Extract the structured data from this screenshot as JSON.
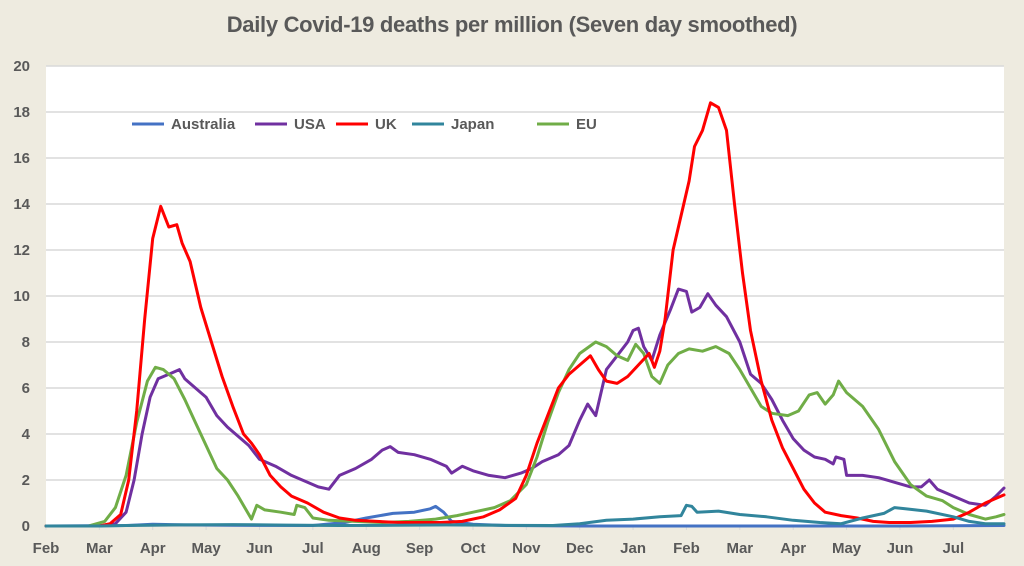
{
  "chart_data": {
    "type": "line",
    "title": "Daily Covid-19 deaths per million (Seven day smoothed)",
    "xlabel": "",
    "ylabel": "",
    "ylim": [
      0,
      20
    ],
    "yticks": [
      0,
      2,
      4,
      6,
      8,
      10,
      12,
      14,
      16,
      18,
      20
    ],
    "xlim_months": [
      0,
      17.95
    ],
    "x_unit": "months since start of Feb 2020",
    "xtick_labels": [
      "Feb",
      "Mar",
      "Apr",
      "May",
      "Jun",
      "Jul",
      "Aug",
      "Sep",
      "Oct",
      "Nov",
      "Dec",
      "Jan",
      "Feb",
      "Mar",
      "Apr",
      "May",
      "Jun",
      "Jul"
    ],
    "grid": "horizontal",
    "legend_position": "top-left (inside plot)",
    "series": [
      {
        "name": "Australia",
        "color": "#4472c4",
        "points": [
          [
            0,
            0
          ],
          [
            1.5,
            0.02
          ],
          [
            2.0,
            0.08
          ],
          [
            2.6,
            0.05
          ],
          [
            3.5,
            0.03
          ],
          [
            5.0,
            0.02
          ],
          [
            5.6,
            0.15
          ],
          [
            6.0,
            0.35
          ],
          [
            6.5,
            0.55
          ],
          [
            6.9,
            0.6
          ],
          [
            7.2,
            0.75
          ],
          [
            7.3,
            0.85
          ],
          [
            7.45,
            0.6
          ],
          [
            7.6,
            0.2
          ],
          [
            8.0,
            0.08
          ],
          [
            8.6,
            0.02
          ],
          [
            10,
            0.0
          ],
          [
            12,
            0.0
          ],
          [
            14,
            0.0
          ],
          [
            16,
            0.0
          ],
          [
            17.95,
            0.02
          ]
        ]
      },
      {
        "name": "USA",
        "color": "#7030a0",
        "points": [
          [
            0,
            0
          ],
          [
            1.0,
            0
          ],
          [
            1.3,
            0.1
          ],
          [
            1.5,
            0.6
          ],
          [
            1.65,
            2.0
          ],
          [
            1.8,
            4.0
          ],
          [
            1.95,
            5.6
          ],
          [
            2.1,
            6.4
          ],
          [
            2.3,
            6.6
          ],
          [
            2.5,
            6.8
          ],
          [
            2.6,
            6.4
          ],
          [
            2.8,
            6.0
          ],
          [
            3.0,
            5.6
          ],
          [
            3.2,
            4.8
          ],
          [
            3.4,
            4.3
          ],
          [
            3.6,
            3.9
          ],
          [
            3.8,
            3.5
          ],
          [
            4.0,
            2.9
          ],
          [
            4.3,
            2.6
          ],
          [
            4.6,
            2.2
          ],
          [
            4.9,
            1.9
          ],
          [
            5.1,
            1.7
          ],
          [
            5.3,
            1.6
          ],
          [
            5.5,
            2.2
          ],
          [
            5.8,
            2.5
          ],
          [
            6.1,
            2.9
          ],
          [
            6.3,
            3.3
          ],
          [
            6.45,
            3.45
          ],
          [
            6.6,
            3.2
          ],
          [
            6.9,
            3.1
          ],
          [
            7.2,
            2.9
          ],
          [
            7.5,
            2.6
          ],
          [
            7.6,
            2.3
          ],
          [
            7.8,
            2.6
          ],
          [
            8.0,
            2.4
          ],
          [
            8.3,
            2.2
          ],
          [
            8.6,
            2.1
          ],
          [
            8.9,
            2.3
          ],
          [
            9.1,
            2.5
          ],
          [
            9.3,
            2.8
          ],
          [
            9.6,
            3.1
          ],
          [
            9.8,
            3.5
          ],
          [
            10.0,
            4.6
          ],
          [
            10.15,
            5.3
          ],
          [
            10.3,
            4.8
          ],
          [
            10.5,
            6.8
          ],
          [
            10.7,
            7.4
          ],
          [
            10.9,
            8.0
          ],
          [
            11.0,
            8.5
          ],
          [
            11.1,
            8.6
          ],
          [
            11.2,
            7.8
          ],
          [
            11.35,
            7.2
          ],
          [
            11.5,
            8.3
          ],
          [
            11.7,
            9.4
          ],
          [
            11.85,
            10.3
          ],
          [
            12.0,
            10.2
          ],
          [
            12.1,
            9.3
          ],
          [
            12.25,
            9.5
          ],
          [
            12.4,
            10.1
          ],
          [
            12.55,
            9.6
          ],
          [
            12.75,
            9.1
          ],
          [
            13.0,
            8.0
          ],
          [
            13.2,
            6.6
          ],
          [
            13.4,
            6.2
          ],
          [
            13.6,
            5.5
          ],
          [
            13.8,
            4.6
          ],
          [
            14.0,
            3.8
          ],
          [
            14.2,
            3.3
          ],
          [
            14.4,
            3.0
          ],
          [
            14.6,
            2.9
          ],
          [
            14.75,
            2.7
          ],
          [
            14.8,
            3.0
          ],
          [
            14.95,
            2.9
          ],
          [
            15.0,
            2.2
          ],
          [
            15.3,
            2.2
          ],
          [
            15.6,
            2.1
          ],
          [
            15.9,
            1.9
          ],
          [
            16.2,
            1.7
          ],
          [
            16.4,
            1.7
          ],
          [
            16.55,
            2.0
          ],
          [
            16.7,
            1.6
          ],
          [
            17.0,
            1.3
          ],
          [
            17.3,
            1.0
          ],
          [
            17.6,
            0.9
          ],
          [
            17.8,
            1.3
          ],
          [
            17.95,
            1.65
          ]
        ]
      },
      {
        "name": "UK",
        "color": "#ff0000",
        "points": [
          [
            0,
            0
          ],
          [
            1.0,
            0
          ],
          [
            1.2,
            0.1
          ],
          [
            1.4,
            0.5
          ],
          [
            1.55,
            2.0
          ],
          [
            1.7,
            5.0
          ],
          [
            1.85,
            9.0
          ],
          [
            2.0,
            12.5
          ],
          [
            2.15,
            13.9
          ],
          [
            2.3,
            13.0
          ],
          [
            2.45,
            13.1
          ],
          [
            2.55,
            12.3
          ],
          [
            2.7,
            11.5
          ],
          [
            2.9,
            9.5
          ],
          [
            3.1,
            8.0
          ],
          [
            3.3,
            6.5
          ],
          [
            3.5,
            5.2
          ],
          [
            3.7,
            4.0
          ],
          [
            3.85,
            3.6
          ],
          [
            4.0,
            3.1
          ],
          [
            4.2,
            2.2
          ],
          [
            4.4,
            1.7
          ],
          [
            4.6,
            1.3
          ],
          [
            4.9,
            1.0
          ],
          [
            5.2,
            0.6
          ],
          [
            5.5,
            0.35
          ],
          [
            5.8,
            0.25
          ],
          [
            6.2,
            0.2
          ],
          [
            6.6,
            0.15
          ],
          [
            7.0,
            0.15
          ],
          [
            7.4,
            0.15
          ],
          [
            7.8,
            0.2
          ],
          [
            8.2,
            0.4
          ],
          [
            8.5,
            0.7
          ],
          [
            8.8,
            1.2
          ],
          [
            9.0,
            2.2
          ],
          [
            9.2,
            3.6
          ],
          [
            9.4,
            4.8
          ],
          [
            9.6,
            6.0
          ],
          [
            9.8,
            6.6
          ],
          [
            10.0,
            7.0
          ],
          [
            10.2,
            7.4
          ],
          [
            10.35,
            6.8
          ],
          [
            10.5,
            6.3
          ],
          [
            10.7,
            6.2
          ],
          [
            10.9,
            6.5
          ],
          [
            11.1,
            7.0
          ],
          [
            11.3,
            7.5
          ],
          [
            11.4,
            6.9
          ],
          [
            11.5,
            7.6
          ],
          [
            11.6,
            9.0
          ],
          [
            11.75,
            12.0
          ],
          [
            11.9,
            13.5
          ],
          [
            12.05,
            15.0
          ],
          [
            12.15,
            16.5
          ],
          [
            12.3,
            17.2
          ],
          [
            12.45,
            18.4
          ],
          [
            12.6,
            18.2
          ],
          [
            12.75,
            17.2
          ],
          [
            12.9,
            14.0
          ],
          [
            13.05,
            11.0
          ],
          [
            13.2,
            8.5
          ],
          [
            13.4,
            6.3
          ],
          [
            13.6,
            4.6
          ],
          [
            13.8,
            3.4
          ],
          [
            14.0,
            2.5
          ],
          [
            14.2,
            1.6
          ],
          [
            14.4,
            1.0
          ],
          [
            14.6,
            0.6
          ],
          [
            14.9,
            0.45
          ],
          [
            15.2,
            0.35
          ],
          [
            15.5,
            0.2
          ],
          [
            15.8,
            0.15
          ],
          [
            16.2,
            0.15
          ],
          [
            16.6,
            0.2
          ],
          [
            17.0,
            0.3
          ],
          [
            17.3,
            0.6
          ],
          [
            17.6,
            1.0
          ],
          [
            17.95,
            1.35
          ]
        ]
      },
      {
        "name": "Japan",
        "color": "#31859c",
        "points": [
          [
            0,
            0
          ],
          [
            1.0,
            0.0
          ],
          [
            1.5,
            0.02
          ],
          [
            2.5,
            0.05
          ],
          [
            3.5,
            0.06
          ],
          [
            4.5,
            0.04
          ],
          [
            5.5,
            0.02
          ],
          [
            6.5,
            0.03
          ],
          [
            7.5,
            0.05
          ],
          [
            8.5,
            0.03
          ],
          [
            9.5,
            0.02
          ],
          [
            10.0,
            0.1
          ],
          [
            10.5,
            0.25
          ],
          [
            11.0,
            0.3
          ],
          [
            11.5,
            0.4
          ],
          [
            11.9,
            0.45
          ],
          [
            12.0,
            0.9
          ],
          [
            12.1,
            0.85
          ],
          [
            12.2,
            0.6
          ],
          [
            12.6,
            0.65
          ],
          [
            13.0,
            0.5
          ],
          [
            13.5,
            0.4
          ],
          [
            14.0,
            0.25
          ],
          [
            14.5,
            0.15
          ],
          [
            14.9,
            0.1
          ],
          [
            15.3,
            0.35
          ],
          [
            15.7,
            0.55
          ],
          [
            15.9,
            0.8
          ],
          [
            16.1,
            0.75
          ],
          [
            16.5,
            0.65
          ],
          [
            17.0,
            0.4
          ],
          [
            17.3,
            0.2
          ],
          [
            17.6,
            0.1
          ],
          [
            17.95,
            0.1
          ]
        ]
      },
      {
        "name": "EU",
        "color": "#70ad47",
        "points": [
          [
            0,
            0
          ],
          [
            0.8,
            0
          ],
          [
            1.1,
            0.2
          ],
          [
            1.3,
            0.8
          ],
          [
            1.5,
            2.2
          ],
          [
            1.7,
            4.5
          ],
          [
            1.9,
            6.3
          ],
          [
            2.05,
            6.9
          ],
          [
            2.2,
            6.8
          ],
          [
            2.4,
            6.4
          ],
          [
            2.6,
            5.5
          ],
          [
            2.8,
            4.5
          ],
          [
            3.0,
            3.5
          ],
          [
            3.2,
            2.5
          ],
          [
            3.4,
            2.0
          ],
          [
            3.6,
            1.3
          ],
          [
            3.75,
            0.7
          ],
          [
            3.85,
            0.3
          ],
          [
            3.95,
            0.9
          ],
          [
            4.1,
            0.7
          ],
          [
            4.4,
            0.6
          ],
          [
            4.65,
            0.5
          ],
          [
            4.7,
            0.9
          ],
          [
            4.85,
            0.8
          ],
          [
            5.0,
            0.35
          ],
          [
            5.3,
            0.25
          ],
          [
            5.8,
            0.2
          ],
          [
            6.3,
            0.15
          ],
          [
            6.8,
            0.2
          ],
          [
            7.3,
            0.3
          ],
          [
            7.7,
            0.45
          ],
          [
            8.0,
            0.6
          ],
          [
            8.4,
            0.8
          ],
          [
            8.7,
            1.1
          ],
          [
            9.0,
            1.8
          ],
          [
            9.2,
            3.0
          ],
          [
            9.4,
            4.5
          ],
          [
            9.6,
            5.8
          ],
          [
            9.8,
            6.8
          ],
          [
            10.0,
            7.5
          ],
          [
            10.3,
            8.0
          ],
          [
            10.5,
            7.8
          ],
          [
            10.7,
            7.4
          ],
          [
            10.9,
            7.2
          ],
          [
            11.05,
            7.9
          ],
          [
            11.2,
            7.5
          ],
          [
            11.35,
            6.5
          ],
          [
            11.5,
            6.2
          ],
          [
            11.65,
            7.0
          ],
          [
            11.85,
            7.5
          ],
          [
            12.05,
            7.7
          ],
          [
            12.3,
            7.6
          ],
          [
            12.55,
            7.8
          ],
          [
            12.8,
            7.5
          ],
          [
            13.0,
            6.8
          ],
          [
            13.2,
            6.0
          ],
          [
            13.4,
            5.2
          ],
          [
            13.6,
            4.9
          ],
          [
            13.9,
            4.8
          ],
          [
            14.1,
            5.0
          ],
          [
            14.3,
            5.7
          ],
          [
            14.45,
            5.8
          ],
          [
            14.6,
            5.3
          ],
          [
            14.75,
            5.7
          ],
          [
            14.85,
            6.3
          ],
          [
            15.0,
            5.8
          ],
          [
            15.3,
            5.2
          ],
          [
            15.6,
            4.2
          ],
          [
            15.9,
            2.8
          ],
          [
            16.2,
            1.8
          ],
          [
            16.5,
            1.3
          ],
          [
            16.8,
            1.1
          ],
          [
            17.0,
            0.8
          ],
          [
            17.3,
            0.5
          ],
          [
            17.6,
            0.3
          ],
          [
            17.8,
            0.4
          ],
          [
            17.95,
            0.5
          ]
        ]
      }
    ]
  }
}
